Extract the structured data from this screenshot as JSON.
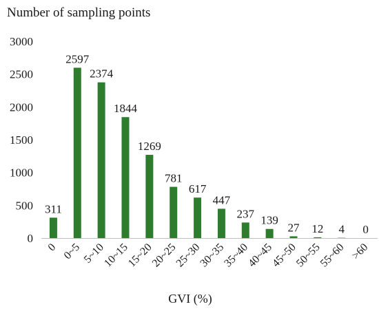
{
  "chart_data": {
    "type": "bar",
    "title": "",
    "ylabel": "Number of sampling points",
    "xlabel": "GVI (%)",
    "categories": [
      "0",
      "0~5",
      "5~10",
      "10~15",
      "15~20",
      "20~25",
      "25~30",
      "30~35",
      "35~40",
      "40~45",
      "45~50",
      "50~55",
      "55~60",
      ">60"
    ],
    "values": [
      311,
      2597,
      2374,
      1844,
      1269,
      781,
      617,
      447,
      237,
      139,
      27,
      12,
      4,
      0
    ],
    "data_labels": [
      "311",
      "2597",
      "2374",
      "1844",
      "1269",
      "781",
      "617",
      "447",
      "237",
      "139",
      "27",
      "12",
      "4",
      "0"
    ],
    "yticks": [
      0,
      500,
      1000,
      1500,
      2000,
      2500,
      3000
    ],
    "ylim": [
      0,
      3000
    ],
    "grid": false,
    "legend": "none",
    "bar_color": "#2e7d2e",
    "axis_color": "#bfbfbf"
  }
}
